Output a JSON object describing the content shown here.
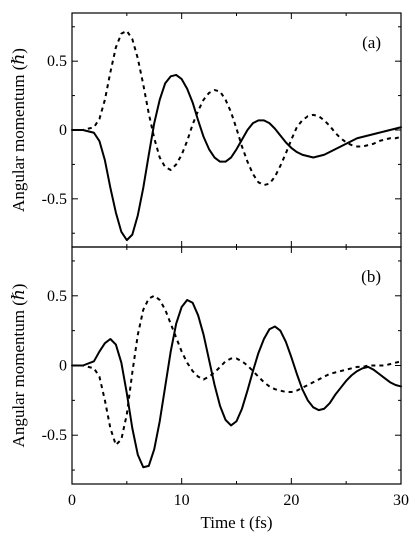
{
  "chart_data": [
    {
      "type": "line",
      "panel_label": "(a)",
      "xlabel": "",
      "ylabel": "Angular momentum (ℏ)",
      "xlim": [
        0,
        30
      ],
      "ylim": [
        -0.85,
        0.85
      ],
      "xticks": [
        0,
        10,
        20,
        30
      ],
      "yticks": [
        0.5,
        0,
        -0.5
      ],
      "ytick_labels": [
        "0.5",
        "0",
        "-0.5"
      ],
      "grid": false,
      "series": [
        {
          "style": "solid",
          "x": [
            0,
            1,
            2,
            2.5,
            3,
            3.5,
            4,
            4.5,
            5,
            5.5,
            6,
            6.5,
            7,
            7.5,
            8,
            8.5,
            9,
            9.5,
            10,
            10.5,
            11,
            11.5,
            12,
            12.5,
            13,
            13.5,
            14,
            14.5,
            15,
            15.5,
            16,
            16.5,
            17,
            17.5,
            18,
            18.5,
            19,
            19.5,
            20,
            20.5,
            21,
            21.5,
            22,
            22.5,
            23,
            23.5,
            24,
            24.5,
            25,
            25.5,
            26,
            26.5,
            27,
            27.5,
            28,
            28.5,
            29,
            29.5,
            30
          ],
          "y": [
            0,
            0,
            -0.02,
            -0.08,
            -0.22,
            -0.42,
            -0.6,
            -0.74,
            -0.8,
            -0.76,
            -0.62,
            -0.42,
            -0.18,
            0.05,
            0.22,
            0.34,
            0.39,
            0.4,
            0.37,
            0.3,
            0.2,
            0.07,
            -0.05,
            -0.14,
            -0.2,
            -0.23,
            -0.23,
            -0.2,
            -0.14,
            -0.07,
            0,
            0.05,
            0.07,
            0.07,
            0.05,
            0.01,
            -0.04,
            -0.09,
            -0.13,
            -0.16,
            -0.18,
            -0.19,
            -0.2,
            -0.19,
            -0.18,
            -0.16,
            -0.14,
            -0.12,
            -0.1,
            -0.08,
            -0.06,
            -0.05,
            -0.04,
            -0.03,
            -0.02,
            -0.01,
            0,
            0.01,
            0.02
          ]
        },
        {
          "style": "dashed",
          "x": [
            0,
            1,
            2,
            2.5,
            3,
            3.5,
            4,
            4.5,
            5,
            5.5,
            6,
            6.5,
            7,
            7.5,
            8,
            8.5,
            9,
            9.5,
            10,
            10.5,
            11,
            11.5,
            12,
            12.5,
            13,
            13.5,
            14,
            14.5,
            15,
            15.5,
            16,
            16.5,
            17,
            17.5,
            18,
            18.5,
            19,
            19.5,
            20,
            20.5,
            21,
            21.5,
            22,
            22.5,
            23,
            23.5,
            24,
            24.5,
            25,
            25.5,
            26,
            26.5,
            27,
            27.5,
            28,
            28.5,
            29,
            29.5,
            30
          ],
          "y": [
            0,
            0,
            0.02,
            0.08,
            0.22,
            0.42,
            0.6,
            0.7,
            0.72,
            0.66,
            0.52,
            0.33,
            0.12,
            -0.06,
            -0.2,
            -0.27,
            -0.29,
            -0.25,
            -0.18,
            -0.08,
            0.04,
            0.14,
            0.22,
            0.27,
            0.29,
            0.28,
            0.22,
            0.13,
            0.01,
            -0.12,
            -0.23,
            -0.32,
            -0.38,
            -0.4,
            -0.39,
            -0.34,
            -0.26,
            -0.17,
            -0.07,
            0.02,
            0.07,
            0.1,
            0.11,
            0.1,
            0.07,
            0.03,
            -0.02,
            -0.06,
            -0.09,
            -0.11,
            -0.12,
            -0.12,
            -0.11,
            -0.1,
            -0.08,
            -0.07,
            -0.06,
            -0.06,
            -0.05
          ]
        }
      ]
    },
    {
      "type": "line",
      "panel_label": "(b)",
      "xlabel": "Time t (fs)",
      "ylabel": "Angular momentum (ℏ)",
      "xlim": [
        0,
        30
      ],
      "ylim": [
        -0.85,
        0.85
      ],
      "xticks": [
        0,
        10,
        20,
        30
      ],
      "xtick_labels": [
        "0",
        "10",
        "20",
        "30"
      ],
      "yticks": [
        0.5,
        0,
        -0.5
      ],
      "ytick_labels": [
        "0.5",
        "0",
        "-0.5"
      ],
      "grid": false,
      "series": [
        {
          "style": "solid",
          "x": [
            0,
            1,
            2,
            2.5,
            3,
            3.5,
            4,
            4.5,
            5,
            5.5,
            6,
            6.5,
            7,
            7.5,
            8,
            8.5,
            9,
            9.5,
            10,
            10.5,
            11,
            11.5,
            12,
            12.5,
            13,
            13.5,
            14,
            14.5,
            15,
            15.5,
            16,
            16.5,
            17,
            17.5,
            18,
            18.5,
            19,
            19.5,
            20,
            20.5,
            21,
            21.5,
            22,
            22.5,
            23,
            23.5,
            24,
            24.5,
            25,
            25.5,
            26,
            26.5,
            27,
            27.5,
            28,
            28.5,
            29,
            29.5,
            30
          ],
          "y": [
            0,
            0,
            0.03,
            0.1,
            0.16,
            0.19,
            0.15,
            0.02,
            -0.2,
            -0.45,
            -0.64,
            -0.73,
            -0.72,
            -0.6,
            -0.4,
            -0.15,
            0.1,
            0.3,
            0.42,
            0.47,
            0.45,
            0.36,
            0.22,
            0.04,
            -0.14,
            -0.29,
            -0.39,
            -0.43,
            -0.4,
            -0.31,
            -0.18,
            -0.04,
            0.09,
            0.19,
            0.26,
            0.28,
            0.25,
            0.17,
            0.06,
            -0.06,
            -0.17,
            -0.25,
            -0.3,
            -0.32,
            -0.31,
            -0.27,
            -0.21,
            -0.16,
            -0.11,
            -0.07,
            -0.04,
            -0.02,
            -0.01,
            -0.03,
            -0.06,
            -0.09,
            -0.12,
            -0.14,
            -0.15
          ]
        },
        {
          "style": "dashed",
          "x": [
            0,
            1,
            2,
            2.5,
            3,
            3.5,
            4,
            4.5,
            5,
            5.5,
            6,
            6.5,
            7,
            7.5,
            8,
            8.5,
            9,
            9.5,
            10,
            10.5,
            11,
            11.5,
            12,
            12.5,
            13,
            13.5,
            14,
            14.5,
            15,
            15.5,
            16,
            16.5,
            17,
            17.5,
            18,
            18.5,
            19,
            19.5,
            20,
            20.5,
            21,
            21.5,
            22,
            22.5,
            23,
            23.5,
            24,
            24.5,
            25,
            25.5,
            26,
            26.5,
            27,
            27.5,
            28,
            28.5,
            29,
            29.5,
            30
          ],
          "y": [
            0,
            0,
            -0.02,
            -0.08,
            -0.25,
            -0.45,
            -0.57,
            -0.53,
            -0.35,
            -0.05,
            0.22,
            0.4,
            0.48,
            0.5,
            0.47,
            0.4,
            0.3,
            0.2,
            0.1,
            0.02,
            -0.04,
            -0.08,
            -0.1,
            -0.08,
            -0.05,
            -0.01,
            0.03,
            0.05,
            0.05,
            0.03,
            0,
            -0.04,
            -0.08,
            -0.12,
            -0.15,
            -0.17,
            -0.18,
            -0.19,
            -0.19,
            -0.18,
            -0.16,
            -0.14,
            -0.12,
            -0.1,
            -0.08,
            -0.06,
            -0.05,
            -0.04,
            -0.03,
            -0.02,
            -0.01,
            -0.01,
            0,
            0,
            0,
            0,
            0.01,
            0.02,
            0.03
          ]
        }
      ]
    }
  ]
}
